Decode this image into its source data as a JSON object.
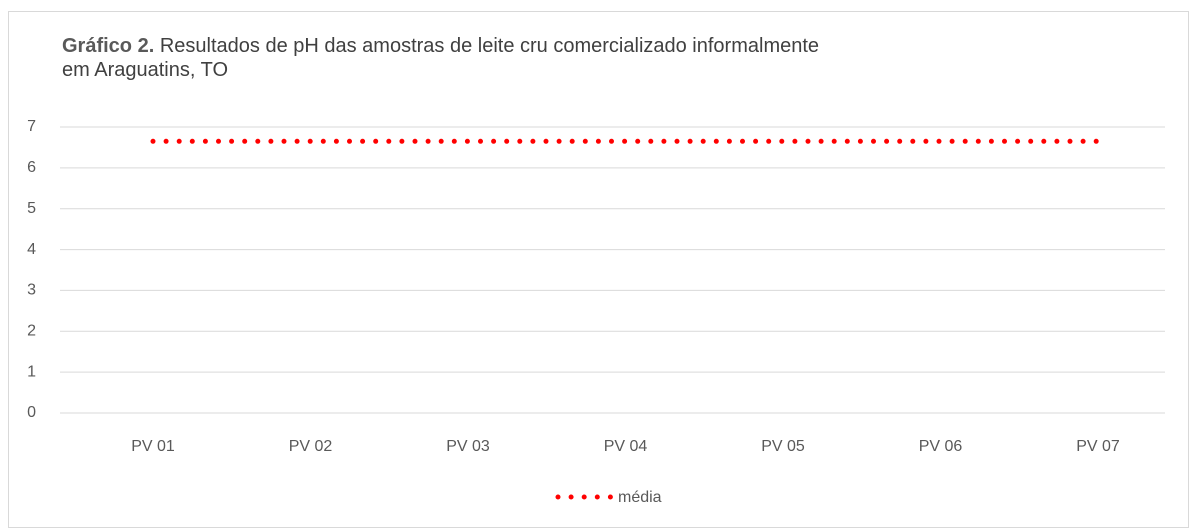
{
  "chart_data": {
    "type": "line",
    "title_label": "Gráfico 2.",
    "title": "Resultados de pH das amostras de leite cru comercializado informalmente em Araguatins, TO",
    "categories": [
      "PV 01",
      "PV 02",
      "PV 03",
      "PV 04",
      "PV 05",
      "PV 06",
      "PV 07"
    ],
    "series": [
      {
        "name": "média",
        "color": "#ff0000",
        "values": [
          6.65,
          6.65,
          6.65,
          6.65,
          6.65,
          6.65,
          6.65
        ]
      }
    ],
    "ylim": [
      0,
      7
    ],
    "yticks": [
      0,
      1,
      2,
      3,
      4,
      5,
      6,
      7
    ],
    "grid": true,
    "legend": "bottom"
  }
}
